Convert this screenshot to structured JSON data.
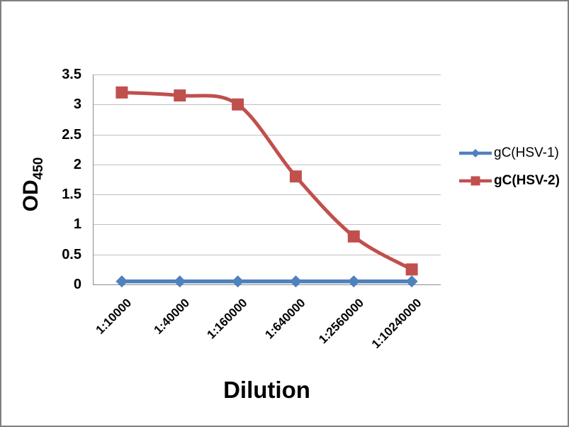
{
  "chart_data": {
    "type": "line",
    "title": "",
    "xlabel": "Dilution",
    "ylabel": "OD",
    "ylabel_subscript": "450",
    "categories": [
      "1:10000",
      "1:40000",
      "1:160000",
      "1:640000",
      "1:2560000",
      "1:10240000"
    ],
    "series": [
      {
        "name": "gC(HSV-1)",
        "color": "#4F81BD",
        "marker": "diamond",
        "legend_bold": false,
        "values": [
          0.05,
          0.05,
          0.05,
          0.05,
          0.05,
          0.05
        ]
      },
      {
        "name": "gC(HSV-2)",
        "color": "#C0504D",
        "marker": "square",
        "legend_bold": true,
        "values": [
          3.2,
          3.15,
          3.0,
          1.8,
          0.8,
          0.25
        ]
      }
    ],
    "ylim": [
      0,
      3.5
    ],
    "ytick_labels": [
      "3.5",
      "3",
      "2.5",
      "2",
      "1.5",
      "1",
      "0.5",
      "0"
    ],
    "grid": true,
    "smoothed_lines": true,
    "legend_position": "right",
    "gridline_color": "#BFBFBF",
    "axis_color": "#8C8C8C",
    "frame_border_color": "#808080"
  }
}
